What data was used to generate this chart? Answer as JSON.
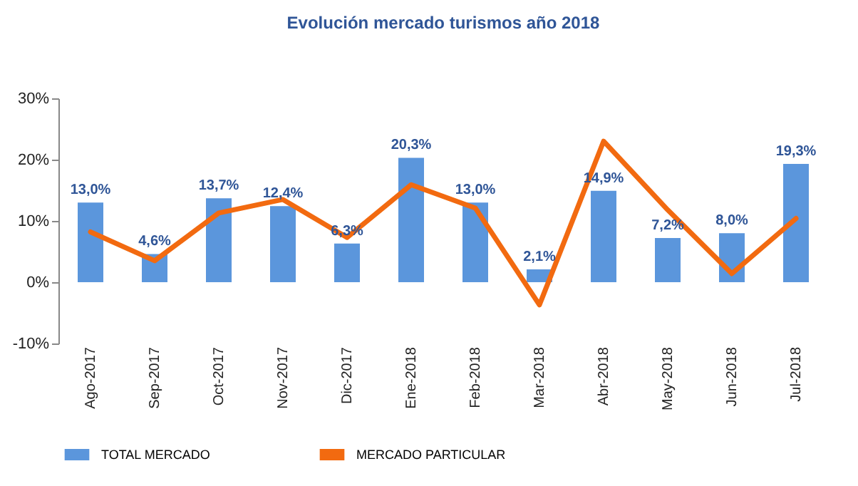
{
  "chart_data": {
    "type": "bar",
    "title": "Evolución mercado turismos año 2018",
    "categories": [
      "Ago-2017",
      "Sep-2017",
      "Oct-2017",
      "Nov-2017",
      "Dic-2017",
      "Ene-2018",
      "Feb-2018",
      "Mar-2018",
      "Abr-2018",
      "May-2018",
      "Jun-2018",
      "Jul-2018"
    ],
    "series": [
      {
        "name": "TOTAL MERCADO",
        "color": "#5b96dc",
        "values": [
          13.0,
          4.6,
          13.7,
          12.4,
          6.3,
          20.3,
          13.0,
          2.1,
          14.9,
          7.2,
          8.0,
          19.3
        ],
        "value_labels": [
          "13,0%",
          "4,6%",
          "13,7%",
          "12,4%",
          "6,3%",
          "20,3%",
          "13,0%",
          "2,1%",
          "14,9%",
          "7,2%",
          "8,0%",
          "19,3%"
        ]
      },
      {
        "name": "MERCADO PARTICULAR",
        "type": "line",
        "color": "#f26a10",
        "values": [
          8.2,
          3.5,
          11.3,
          13.5,
          7.3,
          15.9,
          12.1,
          -3.7,
          23.0,
          11.8,
          1.4,
          10.4
        ]
      }
    ],
    "ylim": [
      -10,
      30
    ],
    "yticks": [
      {
        "value": -10,
        "label": "-10%"
      },
      {
        "value": 0,
        "label": "0%"
      },
      {
        "value": 10,
        "label": "10%"
      },
      {
        "value": 20,
        "label": "20%"
      },
      {
        "value": 30,
        "label": "30%"
      }
    ],
    "grid": false,
    "legend": "bottom"
  }
}
